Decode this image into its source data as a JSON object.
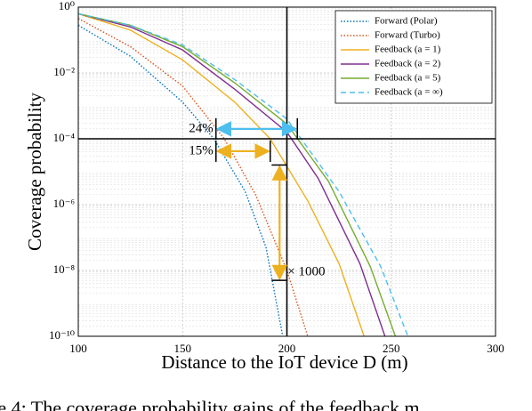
{
  "chart_data": {
    "type": "line",
    "xlabel": "Distance to the IoT device D (m)",
    "ylabel": "Coverage probability",
    "caption": "re 4: The coverage probability gains of the feedback m",
    "xlim": [
      100,
      300
    ],
    "xticks": [
      100,
      150,
      200,
      250,
      300
    ],
    "ylim": [
      1e-10,
      1
    ],
    "yscale": "log",
    "yticks": [
      {
        "value": 1e-10,
        "label": "10⁻¹⁰"
      },
      {
        "value": 1e-08,
        "label": "10⁻⁸"
      },
      {
        "value": 1e-06,
        "label": "10⁻⁶"
      },
      {
        "value": 0.0001,
        "label": "10⁻⁴"
      },
      {
        "value": 0.01,
        "label": "10⁻²"
      },
      {
        "value": 1,
        "label": "10⁰"
      }
    ],
    "grid": true,
    "minor_grid": true,
    "legend": "upper right",
    "vlines": [
      200
    ],
    "hlines": [
      0.0001
    ],
    "series": [
      {
        "name": "Forward (Polar)",
        "color": "#0072bd",
        "linestyle": "dotted",
        "x": [
          100,
          125,
          150,
          165,
          180,
          190,
          198
        ],
        "values": [
          0.28,
          0.032,
          0.0013,
          0.0001,
          2.5e-06,
          5e-08,
          1e-10
        ]
      },
      {
        "name": "Forward (Turbo)",
        "color": "#d95319",
        "linestyle": "dotted",
        "x": [
          100,
          125,
          150,
          170,
          185,
          200,
          210
        ],
        "values": [
          0.45,
          0.063,
          0.004,
          0.0001,
          2e-06,
          1e-08,
          1e-10
        ]
      },
      {
        "name": "Feedback (a = 1)",
        "color": "#edb120",
        "linestyle": "solid",
        "x": [
          100,
          125,
          150,
          175,
          192,
          210,
          225,
          237
        ],
        "values": [
          0.63,
          0.2,
          0.025,
          0.0013,
          0.0001,
          1.3e-06,
          1.6e-08,
          1e-10
        ]
      },
      {
        "name": "Feedback (a = 2)",
        "color": "#7e2f8e",
        "linestyle": "solid",
        "x": [
          100,
          125,
          150,
          175,
          200,
          215,
          235,
          247
        ],
        "values": [
          0.63,
          0.25,
          0.05,
          0.0032,
          0.00016,
          6.3e-06,
          1.6e-08,
          1e-10
        ]
      },
      {
        "name": "Feedback (a = 5)",
        "color": "#77ac30",
        "linestyle": "solid",
        "x": [
          100,
          125,
          150,
          175,
          200,
          220,
          240,
          252
        ],
        "values": [
          0.63,
          0.28,
          0.063,
          0.005,
          0.00028,
          5e-06,
          1.3e-08,
          1e-10
        ]
      },
      {
        "name": "Feedback (a = ∞)",
        "color": "#4dbeee",
        "linestyle": "dashed",
        "x": [
          100,
          125,
          150,
          175,
          200,
          225,
          245,
          258
        ],
        "values": [
          0.63,
          0.28,
          0.071,
          0.0063,
          0.0004,
          2.5e-06,
          1.3e-08,
          1e-10
        ]
      }
    ],
    "annotations": [
      {
        "text": "24%",
        "color": "#4dbeee",
        "x_from": 166,
        "x_to": 205,
        "y": 0.0002
      },
      {
        "text": "15%",
        "color": "#edb120",
        "x_from": 166,
        "x_to": 192,
        "y": 4.2e-05
      },
      {
        "text": "× 1000",
        "color": "#edb120",
        "x": 196.5,
        "y_from": 1.6e-05,
        "y_to": 5e-09
      }
    ]
  }
}
